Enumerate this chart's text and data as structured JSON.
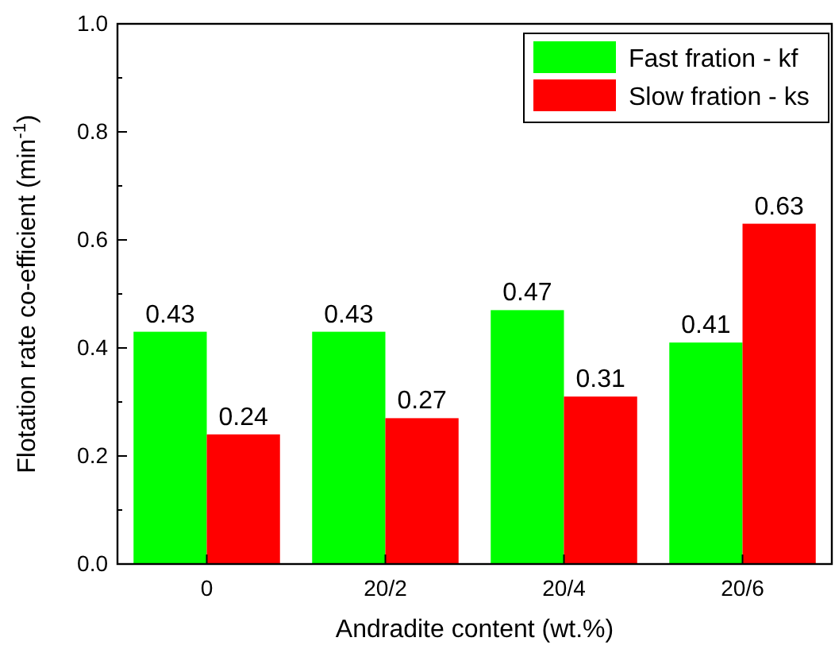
{
  "chart_data": {
    "type": "bar",
    "xlabel": "Andradite content (wt.%)",
    "ylabel": "Flotation rate co-efficient (min$^{-1}$)",
    "categories": [
      "0",
      "20/2",
      "20/4",
      "20/6"
    ],
    "series": [
      {
        "name": "Fast fration - kf",
        "color": "#00ff00",
        "values": [
          0.43,
          0.43,
          0.47,
          0.41
        ]
      },
      {
        "name": "Slow fration - ks",
        "color": "#ff0000",
        "values": [
          0.24,
          0.27,
          0.31,
          0.63
        ]
      }
    ],
    "ylim": [
      0,
      1
    ],
    "yticks": [
      {
        "value": 0,
        "label": "0.0"
      },
      {
        "value": 0.1,
        "label": null
      },
      {
        "value": 0.2,
        "label": "0.2"
      },
      {
        "value": 0.3,
        "label": null
      },
      {
        "value": 0.4,
        "label": "0.4"
      },
      {
        "value": 0.5,
        "label": null
      },
      {
        "value": 0.6,
        "label": "0.6"
      },
      {
        "value": 0.7,
        "label": null
      },
      {
        "value": 0.8,
        "label": "0.8"
      },
      {
        "value": 0.9,
        "label": null
      },
      {
        "value": 1,
        "label": "1.0"
      }
    ],
    "data_labels": true,
    "legend": "top right",
    "grid": false
  }
}
